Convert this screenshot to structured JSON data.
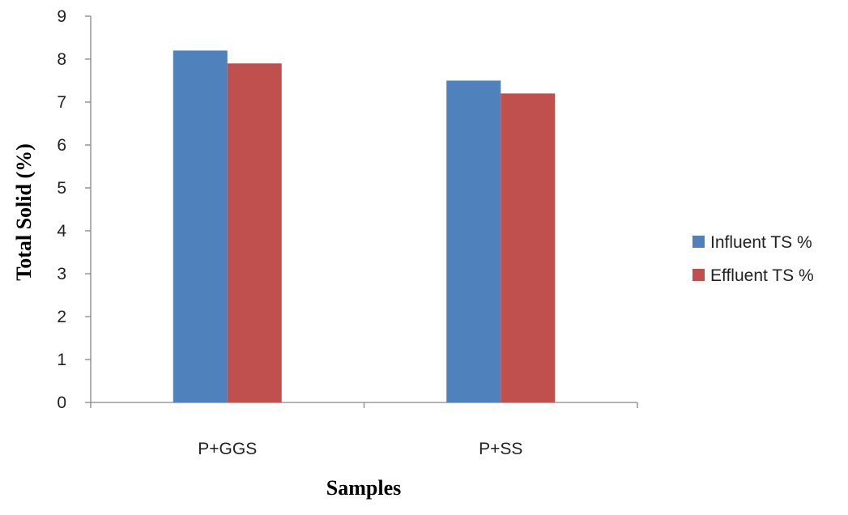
{
  "chart_data": {
    "type": "bar",
    "categories": [
      "P+GGS",
      "P+SS"
    ],
    "series": [
      {
        "name": "Influent TS %",
        "values": [
          8.2,
          7.5
        ],
        "color": "#4F81BD"
      },
      {
        "name": "Effluent TS %",
        "values": [
          7.9,
          7.2
        ],
        "color": "#C0504D"
      }
    ],
    "title": "",
    "xlabel": "Samples",
    "ylabel": "Total Solid (%)",
    "ylim": [
      0,
      9
    ],
    "yticks": [
      "0",
      "1",
      "2",
      "3",
      "4",
      "5",
      "6",
      "7",
      "8",
      "9"
    ],
    "grid": false,
    "legend_position": "right"
  }
}
